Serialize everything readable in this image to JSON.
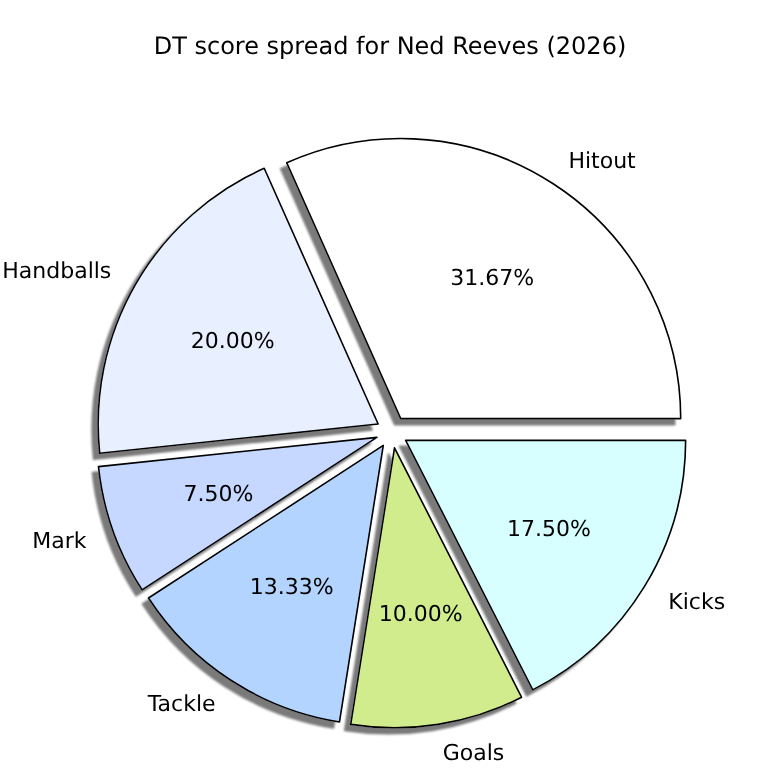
{
  "chart_data": {
    "type": "pie",
    "title": "DT score spread for Ned Reeves (2026)",
    "categories": [
      "Hitout",
      "Handballs",
      "Mark",
      "Tackle",
      "Goals",
      "Kicks"
    ],
    "values": [
      31.67,
      20.0,
      7.5,
      13.33,
      10.0,
      17.5
    ],
    "value_labels": [
      "31.67%",
      "20.00%",
      "7.50%",
      "13.33%",
      "10.00%",
      "17.50%"
    ],
    "colors": [
      "#ffffff",
      "#e8f0ff",
      "#c6d8ff",
      "#b3d4ff",
      "#d0ec8c",
      "#d8ffff"
    ]
  }
}
